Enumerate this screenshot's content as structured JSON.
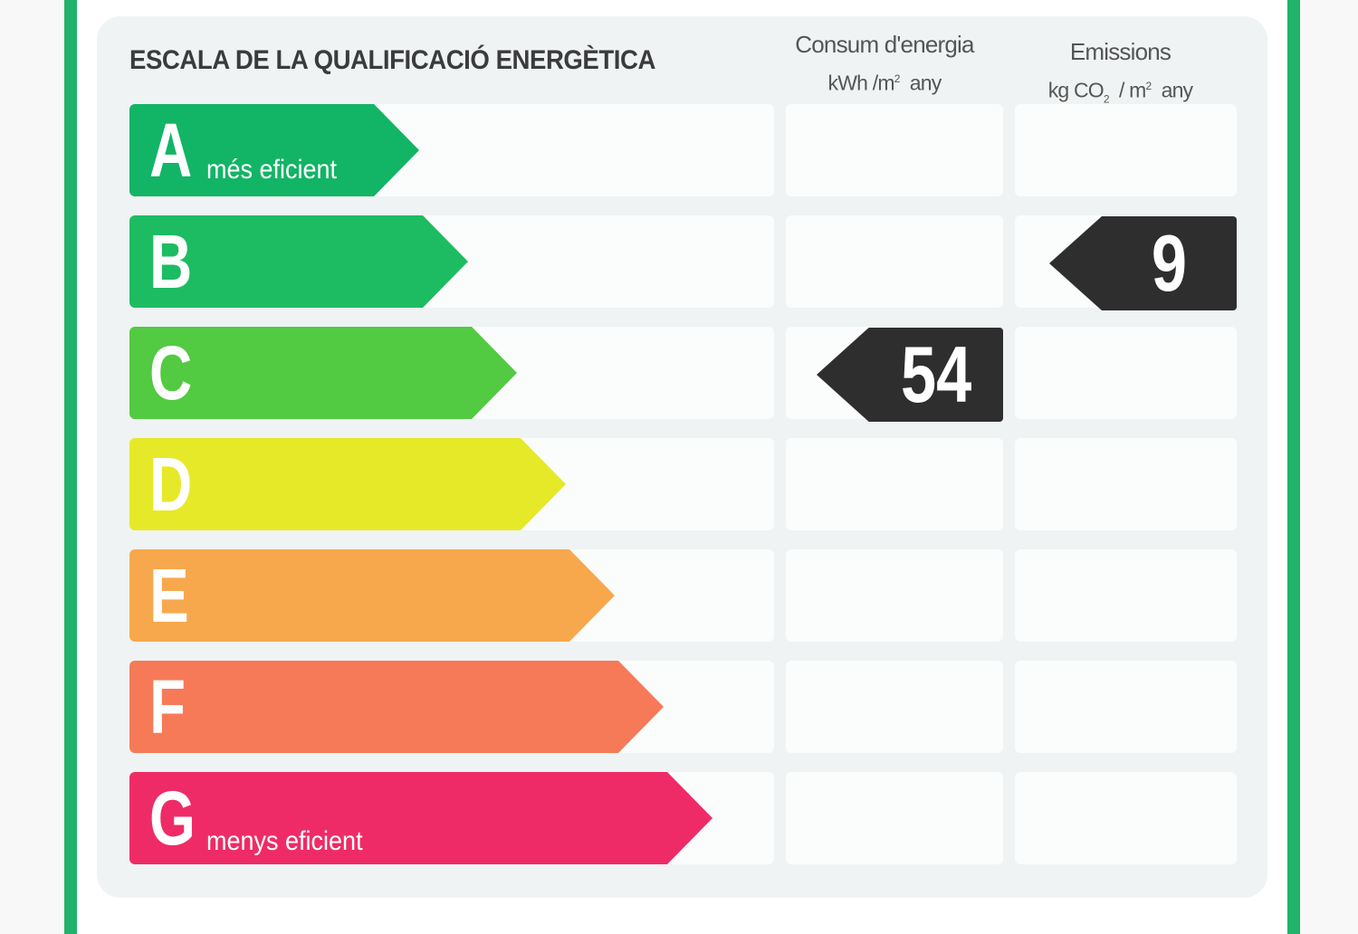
{
  "title": "ESCALA DE LA QUALIFICACIÓ ENERGÈTICA",
  "columns": {
    "consum": {
      "label": "Consum d'energia",
      "unit": "kWh /m",
      "unit_sup": "2",
      "unit_tail": "any"
    },
    "emissions": {
      "label": "Emissions",
      "unit": "kg CO",
      "unit_sub": "2",
      "unit_mid": "/ m",
      "unit_sup": "2",
      "unit_tail": "any"
    }
  },
  "ratings": [
    {
      "letter": "A",
      "caption": "més eficient",
      "color": "#12b466"
    },
    {
      "letter": "B",
      "caption": "",
      "color": "#1dbc62"
    },
    {
      "letter": "C",
      "caption": "",
      "color": "#52ca42"
    },
    {
      "letter": "D",
      "caption": "",
      "color": "#e6e928"
    },
    {
      "letter": "E",
      "caption": "",
      "color": "#f8a84c"
    },
    {
      "letter": "F",
      "caption": "",
      "color": "#f67a58"
    },
    {
      "letter": "G",
      "caption": "menys eficient",
      "color": "#ef2b67"
    }
  ],
  "consum_value": {
    "value": "54",
    "rating": "C"
  },
  "emissions_value": {
    "value": "9",
    "rating": "B"
  },
  "colors": {
    "frame": "#22b36a",
    "badge": "#2e2e2e"
  }
}
